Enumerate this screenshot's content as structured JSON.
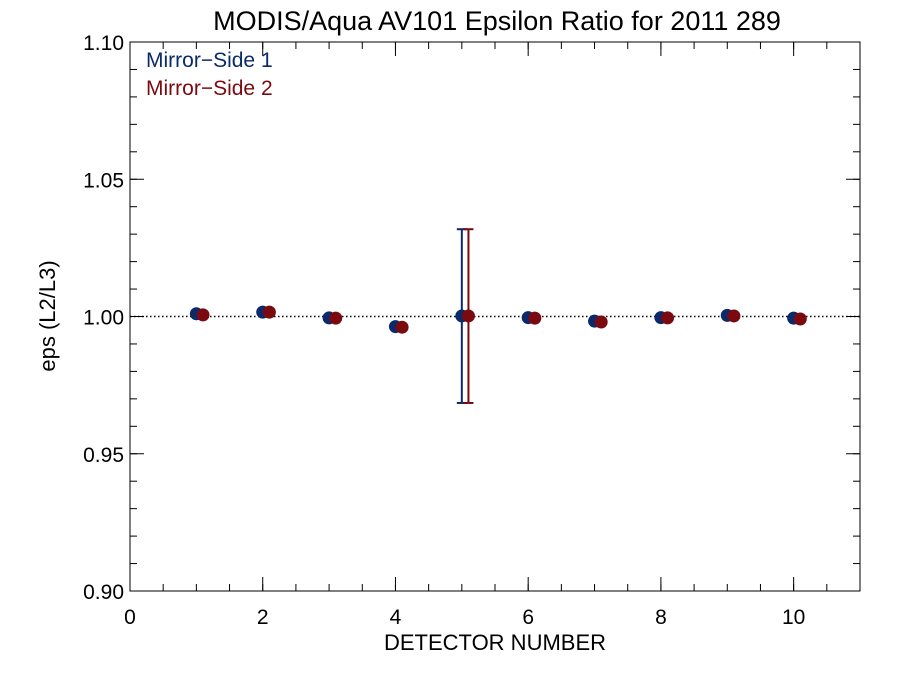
{
  "chart_data": {
    "type": "scatter",
    "title": "MODIS/Aqua AV101 Epsilon Ratio for 2011 289",
    "xlabel": "DETECTOR NUMBER",
    "ylabel": "eps (L2/L3)",
    "xlim": [
      0,
      11
    ],
    "ylim": [
      0.9,
      1.1
    ],
    "x_ticks": [
      0,
      2,
      4,
      6,
      8,
      10
    ],
    "x_tick_labels": [
      "0",
      "2",
      "4",
      "6",
      "8",
      "10"
    ],
    "x_minor_step": 0.5,
    "y_ticks": [
      0.9,
      0.95,
      1.0,
      1.05,
      1.1
    ],
    "y_tick_labels": [
      "0.90",
      "0.95",
      "1.00",
      "1.05",
      "1.10"
    ],
    "y_minor_step": 0.01,
    "reference_line": 1.0,
    "legend_position": "top-left",
    "series": [
      {
        "name": "Mirror−Side 1",
        "color": "#0b2a6b",
        "x": [
          1,
          2,
          3,
          4,
          5,
          6,
          7,
          8,
          9,
          10
        ],
        "values": [
          1.001,
          1.0016,
          0.9995,
          0.9963,
          1.0002,
          0.9996,
          0.9983,
          0.9996,
          1.0004,
          0.9994
        ],
        "error_bars": [
          null,
          null,
          null,
          null,
          {
            "low": 0.9685,
            "high": 1.0318
          },
          null,
          null,
          null,
          null,
          null
        ]
      },
      {
        "name": "Mirror−Side 2",
        "color": "#7a0a10",
        "x": [
          1.1,
          2.1,
          3.1,
          4.1,
          5.1,
          6.1,
          7.1,
          8.1,
          9.1,
          10.1
        ],
        "values": [
          1.0006,
          1.0016,
          0.9994,
          0.9961,
          1.0002,
          0.9994,
          0.998,
          0.9995,
          1.0002,
          0.9991
        ],
        "error_bars": [
          null,
          null,
          null,
          null,
          {
            "low": 0.9685,
            "high": 1.0318
          },
          null,
          null,
          null,
          null,
          null
        ]
      }
    ]
  }
}
